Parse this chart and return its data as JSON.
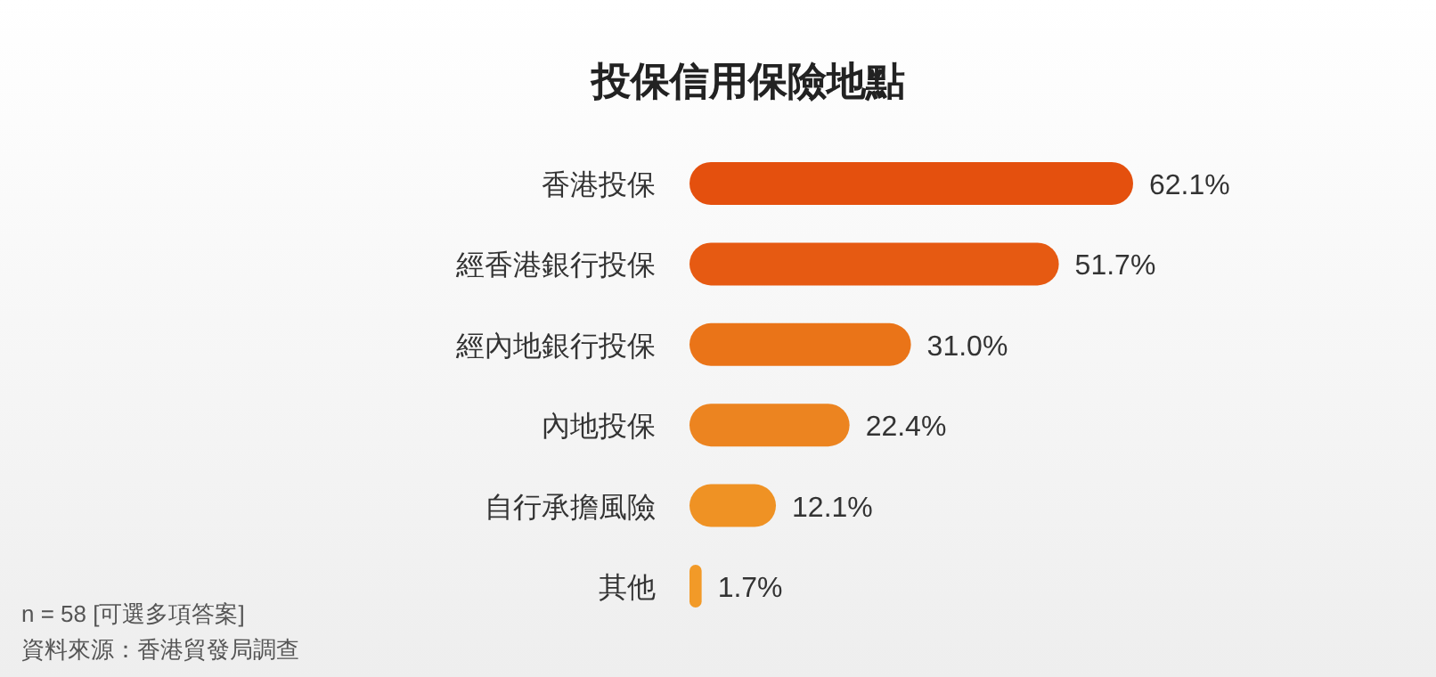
{
  "chart_data": {
    "type": "bar",
    "orientation": "horizontal",
    "title": "投保信用保險地點",
    "categories": [
      "香港投保",
      "經香港銀行投保",
      "經內地銀行投保",
      "內地投保",
      "自行承擔風險",
      "其他"
    ],
    "values": [
      62.1,
      51.7,
      31.0,
      22.4,
      12.1,
      1.7
    ],
    "value_labels": [
      "62.1%",
      "51.7%",
      "31.0%",
      "22.4%",
      "12.1%",
      "1.7%"
    ],
    "colors": [
      "#e4500e",
      "#e65a12",
      "#ea7418",
      "#ec8420",
      "#ef9224",
      "#f29a28"
    ],
    "annotations": [
      "n = 58 [可選多項答案]",
      "資料來源：香港貿發局調查"
    ]
  }
}
